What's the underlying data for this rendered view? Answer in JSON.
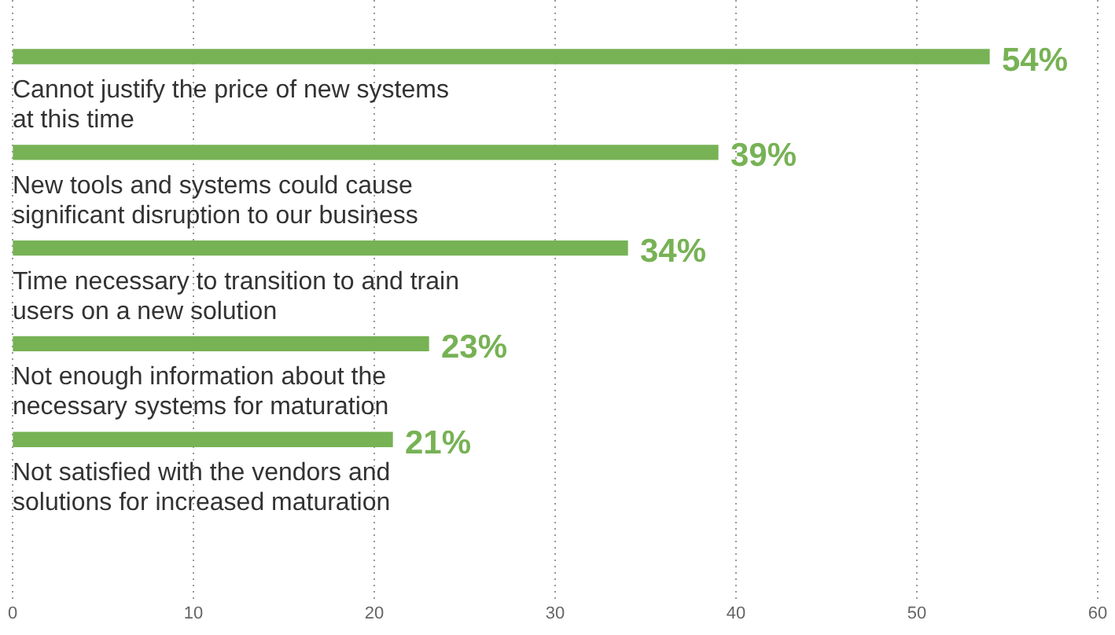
{
  "chart_data": {
    "type": "bar",
    "orientation": "horizontal",
    "categories": [
      "Cannot justify the price of new systems at this time",
      "New tools and systems could cause significant disruption to our business",
      "Time necessary to transition to and train users on a new solution",
      "Not enough information about the necessary systems for maturation",
      "Not satisfied with the vendors and solutions for increased maturation"
    ],
    "values": [
      54,
      39,
      34,
      23,
      21
    ],
    "value_labels": [
      "54%",
      "39%",
      "34%",
      "23%",
      "21%"
    ],
    "color": "#77b255",
    "xlim": [
      0,
      60
    ],
    "xticks": [
      0,
      10,
      20,
      30,
      40,
      50,
      60
    ],
    "grid": "x"
  }
}
